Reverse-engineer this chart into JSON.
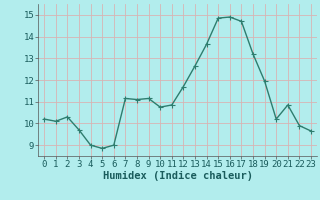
{
  "x": [
    0,
    1,
    2,
    3,
    4,
    5,
    6,
    7,
    8,
    9,
    10,
    11,
    12,
    13,
    14,
    15,
    16,
    17,
    18,
    19,
    20,
    21,
    22,
    23
  ],
  "y": [
    10.2,
    10.1,
    10.3,
    9.7,
    9.0,
    8.85,
    9.0,
    11.15,
    11.1,
    11.15,
    10.75,
    10.85,
    11.7,
    12.65,
    13.65,
    14.85,
    14.9,
    14.7,
    13.2,
    11.95,
    10.2,
    10.85,
    9.9,
    9.65
  ],
  "line_color": "#2e7d6e",
  "marker": "D",
  "marker_size": 1.8,
  "line_width": 1.0,
  "bg_color": "#b2eded",
  "grid_color_major": "#d8b4b4",
  "grid_color_minor": "#cfe8e8",
  "xlabel": "Humidex (Indice chaleur)",
  "xlabel_fontsize": 7.5,
  "tick_fontsize": 6.5,
  "ylim": [
    8.5,
    15.5
  ],
  "xlim": [
    -0.5,
    23.5
  ],
  "yticks": [
    9,
    10,
    11,
    12,
    13,
    14,
    15
  ],
  "xticks": [
    0,
    1,
    2,
    3,
    4,
    5,
    6,
    7,
    8,
    9,
    10,
    11,
    12,
    13,
    14,
    15,
    16,
    17,
    18,
    19,
    20,
    21,
    22,
    23
  ]
}
